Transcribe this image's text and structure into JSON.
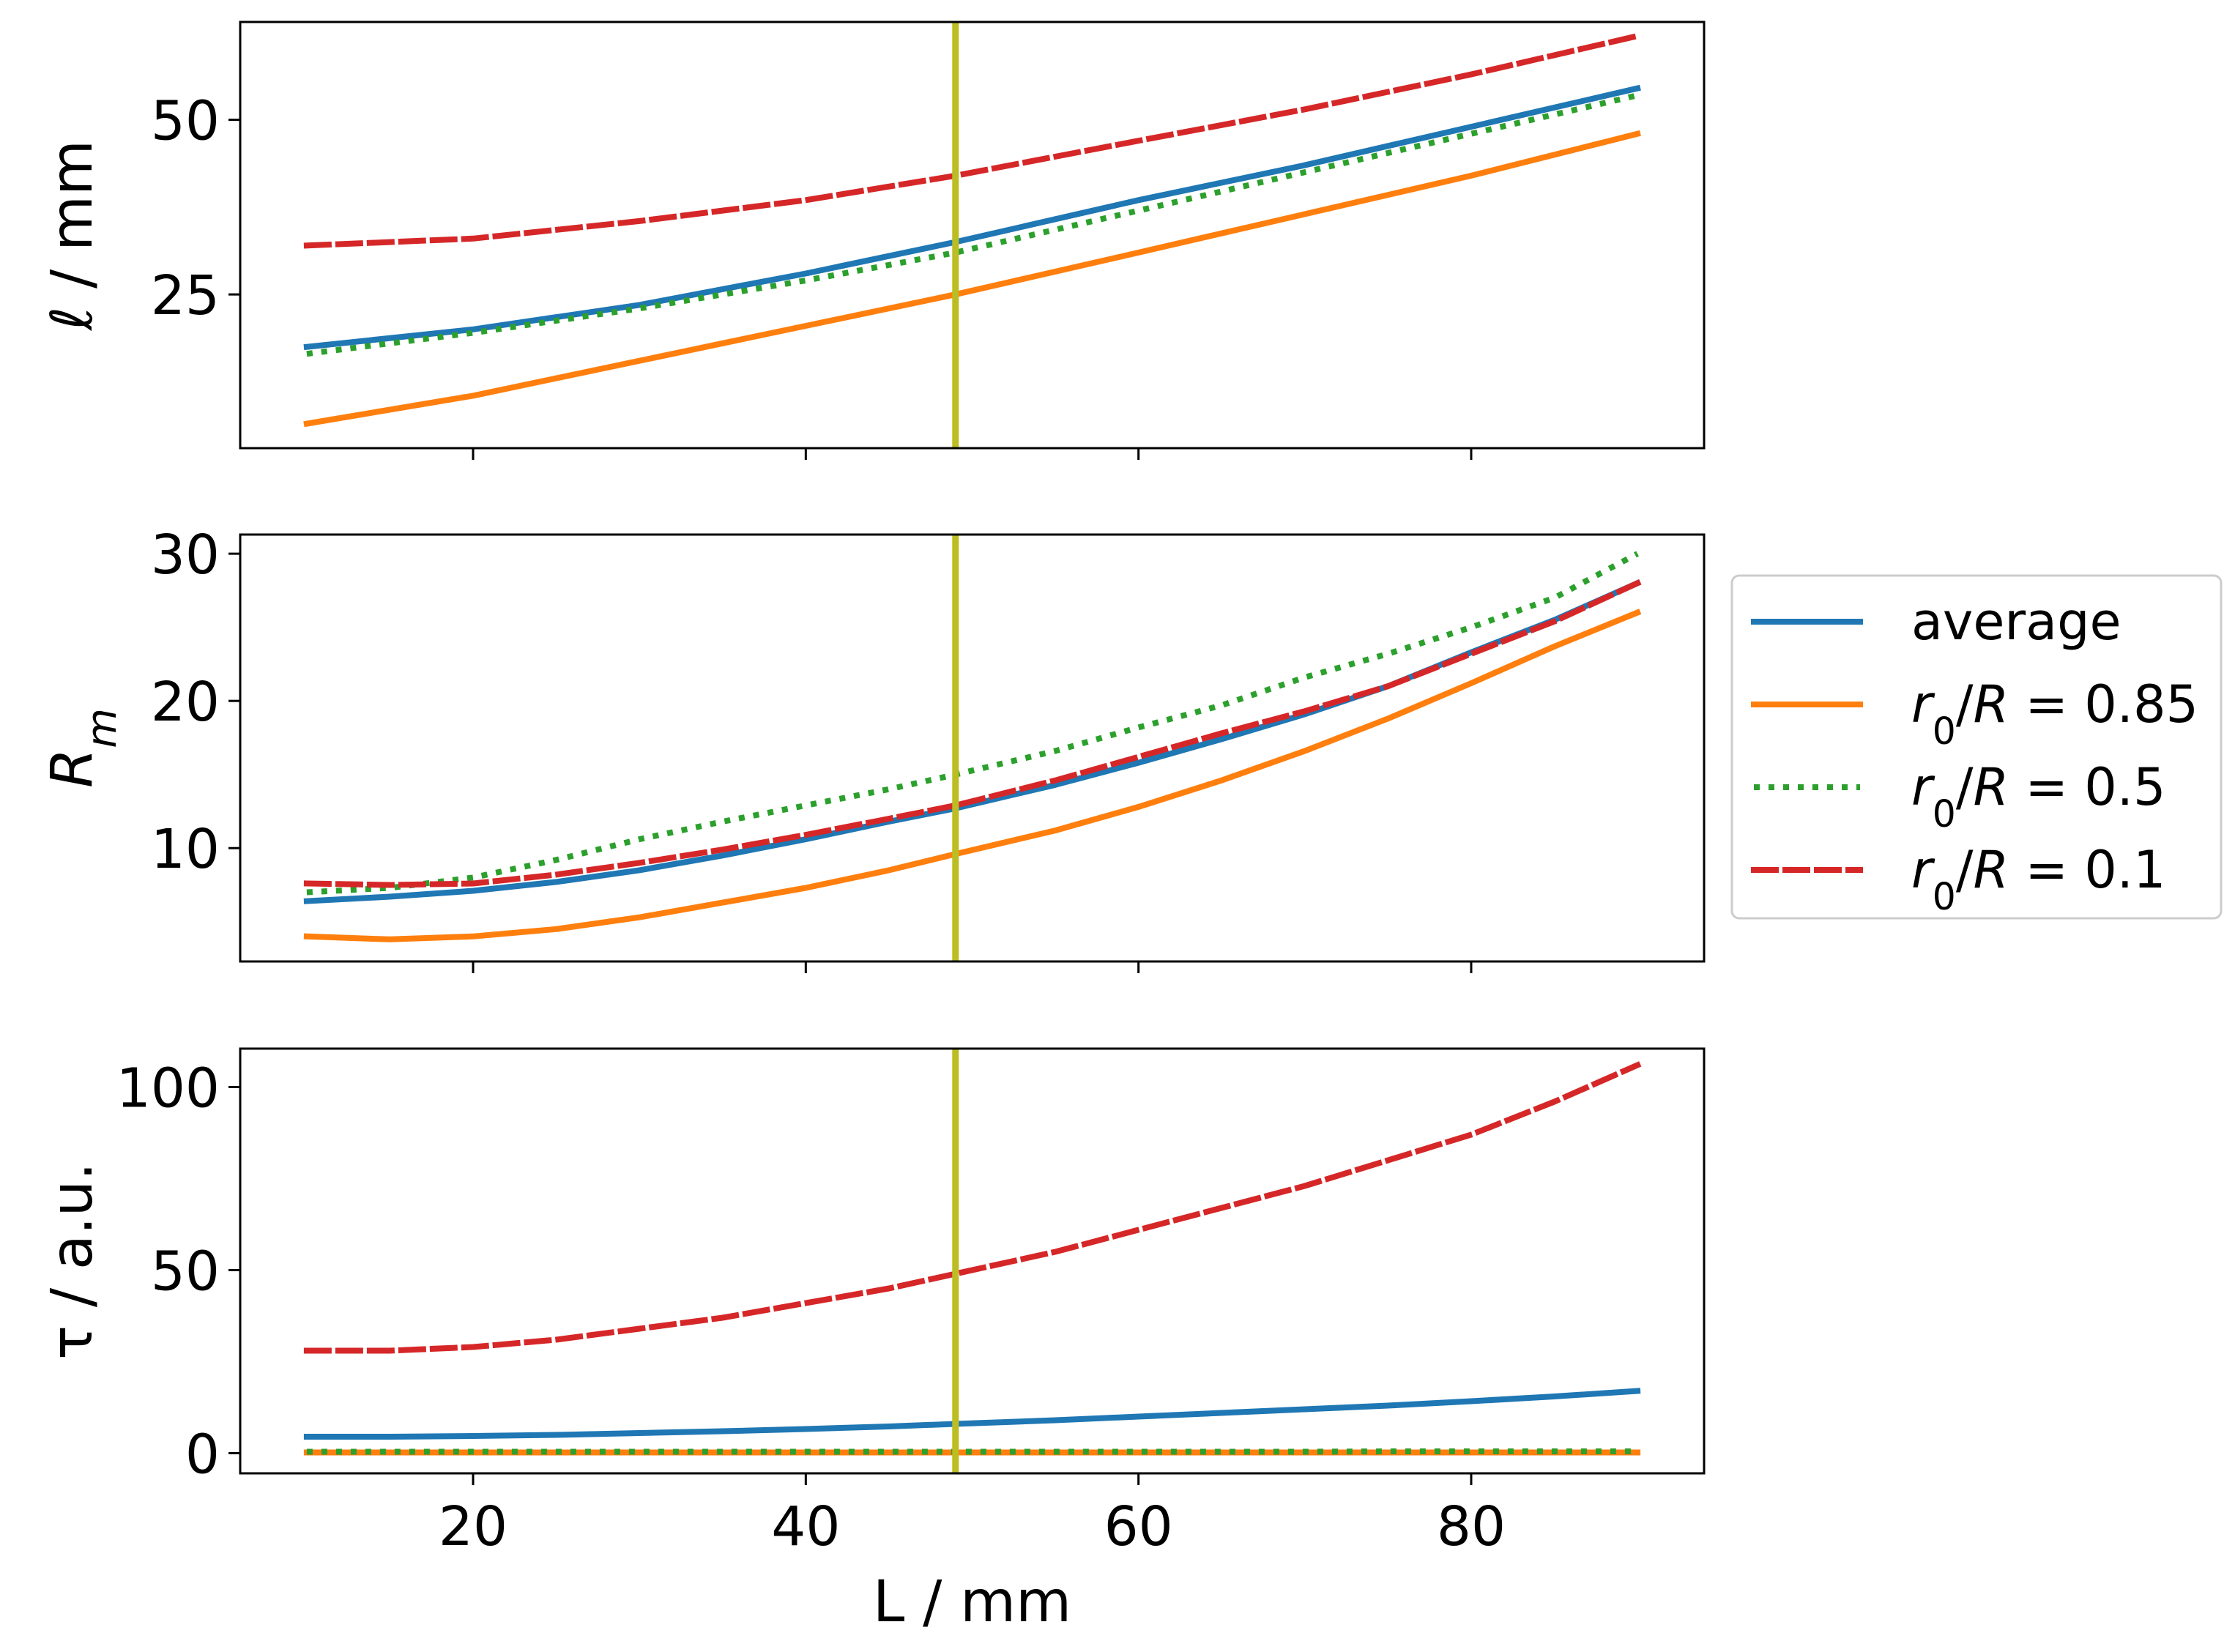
{
  "chart_data": [
    {
      "type": "line",
      "panel": "top",
      "ylabel": "ℓ / mm",
      "xlabel": "",
      "xlim": [
        6,
        94
      ],
      "ylim": [
        3,
        64
      ],
      "xticks": [
        20,
        40,
        60,
        80
      ],
      "yticks": [
        25,
        50
      ],
      "yticklabels": [
        "25",
        "50"
      ],
      "vline": {
        "x": 49,
        "color": "#bcbd22"
      },
      "x": [
        10,
        20,
        30,
        40,
        49,
        60,
        70,
        80,
        90
      ],
      "series": [
        {
          "name": "average",
          "style": "solid",
          "color": "#1f77b4",
          "values": [
            17.5,
            20,
            23.5,
            28,
            32.5,
            38.5,
            43.5,
            49,
            54.5
          ]
        },
        {
          "name": "r0/R = 0.85",
          "style": "solid",
          "color": "#ff7f0e",
          "values": [
            6.5,
            10.5,
            15.5,
            20.5,
            25,
            31,
            36.5,
            42,
            48
          ]
        },
        {
          "name": "r0/R = 0.5",
          "style": "dotted",
          "color": "#2ca02c",
          "values": [
            16.5,
            19.5,
            23,
            27,
            31,
            37,
            42.5,
            48,
            53.5
          ]
        },
        {
          "name": "r0/R = 0.1",
          "style": "dashed",
          "color": "#d62728",
          "values": [
            32,
            33,
            35.5,
            38.5,
            42,
            47,
            51.5,
            56.5,
            62
          ]
        }
      ]
    },
    {
      "type": "line",
      "panel": "middle",
      "ylabel": "R_m",
      "xlabel": "",
      "xlim": [
        6,
        94
      ],
      "ylim": [
        2.3,
        31.3
      ],
      "xticks": [
        20,
        40,
        60,
        80
      ],
      "yticks": [
        10,
        20,
        30
      ],
      "yticklabels": [
        "10",
        "20",
        "30"
      ],
      "vline": {
        "x": 49,
        "color": "#bcbd22"
      },
      "x": [
        10,
        15,
        20,
        25,
        30,
        35,
        40,
        45,
        49,
        55,
        60,
        65,
        70,
        75,
        80,
        85,
        90
      ],
      "series": [
        {
          "name": "average",
          "style": "solid",
          "color": "#1f77b4",
          "values": [
            6.4,
            6.7,
            7.1,
            7.7,
            8.5,
            9.5,
            10.6,
            11.8,
            12.7,
            14.3,
            15.8,
            17.4,
            19.1,
            21,
            23.3,
            25.5,
            28
          ]
        },
        {
          "name": "r0/R = 0.85",
          "style": "solid",
          "color": "#ff7f0e",
          "values": [
            4,
            3.8,
            4,
            4.5,
            5.3,
            6.3,
            7.3,
            8.5,
            9.6,
            11.2,
            12.8,
            14.6,
            16.6,
            18.8,
            21.2,
            23.7,
            26
          ]
        },
        {
          "name": "r0/R = 0.5",
          "style": "dotted",
          "color": "#2ca02c",
          "values": [
            7,
            7.3,
            8,
            9.2,
            10.6,
            11.8,
            12.9,
            14,
            15,
            16.6,
            18.2,
            19.7,
            21.6,
            23.2,
            25,
            27,
            30
          ]
        },
        {
          "name": "r0/R = 0.1",
          "style": "dashed",
          "color": "#d62728",
          "values": [
            7.6,
            7.5,
            7.6,
            8.2,
            9,
            9.9,
            10.9,
            12,
            12.9,
            14.6,
            16.2,
            17.8,
            19.3,
            21,
            23.2,
            25.4,
            28
          ]
        }
      ]
    },
    {
      "type": "line",
      "panel": "bottom",
      "ylabel": "τ / a.u.",
      "xlabel": "L / mm",
      "xlim": [
        6,
        94
      ],
      "ylim": [
        -5.5,
        110.5
      ],
      "xticks": [
        20,
        40,
        60,
        80
      ],
      "xticklabels": [
        "20",
        "40",
        "60",
        "80"
      ],
      "yticks": [
        0,
        50,
        100
      ],
      "yticklabels": [
        "0",
        "50",
        "100"
      ],
      "vline": {
        "x": 49,
        "color": "#bcbd22"
      },
      "x": [
        10,
        15,
        20,
        25,
        30,
        35,
        40,
        45,
        49,
        55,
        60,
        65,
        70,
        75,
        80,
        85,
        90
      ],
      "series": [
        {
          "name": "average",
          "style": "solid",
          "color": "#1f77b4",
          "values": [
            4.5,
            4.5,
            4.7,
            5,
            5.5,
            6,
            6.6,
            7.3,
            8,
            9,
            10,
            11,
            12,
            13,
            14.2,
            15.5,
            17
          ]
        },
        {
          "name": "r0/R = 0.85",
          "style": "solid",
          "color": "#ff7f0e",
          "values": [
            0.2,
            0.2,
            0.2,
            0.2,
            0.2,
            0.2,
            0.2,
            0.2,
            0.2,
            0.2,
            0.2,
            0.2,
            0.2,
            0.2,
            0.2,
            0.2,
            0.2
          ]
        },
        {
          "name": "r0/R = 0.5",
          "style": "dotted",
          "color": "#2ca02c",
          "values": [
            0.4,
            0.4,
            0.4,
            0.4,
            0.4,
            0.4,
            0.4,
            0.4,
            0.4,
            0.4,
            0.4,
            0.4,
            0.4,
            0.5,
            0.5,
            0.5,
            0.5
          ]
        },
        {
          "name": "r0/R = 0.1",
          "style": "dashed",
          "color": "#d62728",
          "values": [
            28,
            28,
            29,
            31,
            34,
            37,
            41,
            45,
            49,
            55,
            61,
            67,
            73,
            80,
            87,
            96,
            106
          ]
        }
      ]
    }
  ],
  "legend": {
    "placement": "right of middle panel",
    "entries": [
      {
        "label": "average",
        "style": "solid",
        "color": "#1f77b4"
      },
      {
        "label": "r0/R = 0.85",
        "style": "solid",
        "color": "#ff7f0e"
      },
      {
        "label": "r0/R = 0.5",
        "style": "dotted",
        "color": "#2ca02c"
      },
      {
        "label": "r0/R = 0.1",
        "style": "dashed",
        "color": "#d62728"
      }
    ]
  }
}
